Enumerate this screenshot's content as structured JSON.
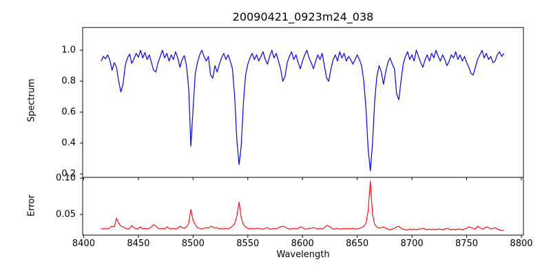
{
  "figure": {
    "background_color": "#ffffff",
    "axis_color": "#000000"
  },
  "chart_data": {
    "type": "line",
    "title": "20090421_0923m24_038",
    "xlabel": "Wavelength",
    "grid": false,
    "legend": "none",
    "xlim": [
      8399.1,
      8801.9
    ],
    "xticks": [
      8400,
      8450,
      8500,
      8550,
      8600,
      8650,
      8700,
      8750,
      8800
    ],
    "xtick_labels": [
      "8400",
      "8450",
      "8500",
      "8550",
      "8600",
      "8650",
      "8700",
      "8750",
      "8800"
    ],
    "x_start": 8416,
    "x_step": 2,
    "panels": [
      {
        "name": "spectrum",
        "ylabel": "Spectrum",
        "ylim": [
          0.178,
          1.147
        ],
        "yticks": [
          0.2,
          0.4,
          0.6,
          0.8,
          1.0
        ],
        "ytick_labels": [
          "0.2",
          "0.4",
          "0.6",
          "0.8",
          "1.0"
        ],
        "series_name": "spectrum-flux",
        "color": "#0000ff"
      },
      {
        "name": "error",
        "ylabel": "Error",
        "ylim": [
          0.0217,
          0.101
        ],
        "yticks": [
          0.05,
          0.1
        ],
        "ytick_labels": [
          "0.05",
          "0.10"
        ],
        "series_name": "error-values",
        "color": "#ff0000"
      }
    ],
    "absorption_line_centers": [
      8498,
      8542,
      8662
    ],
    "spectrum_flux": [
      0.93,
      0.96,
      0.945,
      0.97,
      0.935,
      0.87,
      0.92,
      0.89,
      0.8,
      0.73,
      0.78,
      0.9,
      0.95,
      0.975,
      0.915,
      0.945,
      0.98,
      0.955,
      1.0,
      0.95,
      0.985,
      0.94,
      0.97,
      0.92,
      0.87,
      0.86,
      0.92,
      0.96,
      1.0,
      0.95,
      0.98,
      0.93,
      0.97,
      0.94,
      0.99,
      0.95,
      0.89,
      0.94,
      0.965,
      0.9,
      0.75,
      0.38,
      0.62,
      0.85,
      0.92,
      0.97,
      1.0,
      0.96,
      0.93,
      0.96,
      0.84,
      0.82,
      0.9,
      0.86,
      0.91,
      0.95,
      0.98,
      0.94,
      0.97,
      0.93,
      0.88,
      0.7,
      0.42,
      0.26,
      0.38,
      0.66,
      0.84,
      0.91,
      0.95,
      0.98,
      0.94,
      0.97,
      0.93,
      0.96,
      0.99,
      0.94,
      0.91,
      0.96,
      1.0,
      0.95,
      0.98,
      0.93,
      0.88,
      0.8,
      0.83,
      0.92,
      0.96,
      0.99,
      0.94,
      0.97,
      0.92,
      0.88,
      0.93,
      0.97,
      1.0,
      0.95,
      0.92,
      0.88,
      0.93,
      0.97,
      0.94,
      0.98,
      0.9,
      0.82,
      0.8,
      0.88,
      0.94,
      0.97,
      0.93,
      0.99,
      0.95,
      0.98,
      0.93,
      0.96,
      0.94,
      0.91,
      0.94,
      0.97,
      0.94,
      0.9,
      0.8,
      0.62,
      0.36,
      0.22,
      0.4,
      0.68,
      0.83,
      0.9,
      0.86,
      0.78,
      0.86,
      0.92,
      0.95,
      0.91,
      0.88,
      0.72,
      0.68,
      0.8,
      0.91,
      0.96,
      0.99,
      0.94,
      0.97,
      0.93,
      1.0,
      0.96,
      0.92,
      0.89,
      0.94,
      0.97,
      0.93,
      0.98,
      0.95,
      1.0,
      0.96,
      0.93,
      0.97,
      0.94,
      0.9,
      0.93,
      0.97,
      0.95,
      0.99,
      0.94,
      0.97,
      0.93,
      0.96,
      0.92,
      0.89,
      0.85,
      0.84,
      0.89,
      0.94,
      0.97,
      1.0,
      0.95,
      0.98,
      0.94,
      0.96,
      0.92,
      0.93,
      0.97,
      0.99,
      0.96,
      0.98
    ],
    "error_values": [
      0.031,
      0.03,
      0.031,
      0.03,
      0.032,
      0.034,
      0.033,
      0.045,
      0.038,
      0.034,
      0.033,
      0.031,
      0.03,
      0.031,
      0.035,
      0.032,
      0.03,
      0.031,
      0.033,
      0.03,
      0.031,
      0.03,
      0.031,
      0.033,
      0.036,
      0.034,
      0.031,
      0.03,
      0.031,
      0.03,
      0.033,
      0.031,
      0.03,
      0.031,
      0.03,
      0.031,
      0.034,
      0.032,
      0.031,
      0.033,
      0.038,
      0.057,
      0.042,
      0.036,
      0.032,
      0.031,
      0.03,
      0.031,
      0.032,
      0.031,
      0.034,
      0.033,
      0.031,
      0.032,
      0.03,
      0.031,
      0.03,
      0.031,
      0.03,
      0.032,
      0.034,
      0.037,
      0.048,
      0.067,
      0.046,
      0.036,
      0.033,
      0.031,
      0.03,
      0.031,
      0.03,
      0.031,
      0.031,
      0.03,
      0.03,
      0.031,
      0.032,
      0.03,
      0.03,
      0.031,
      0.03,
      0.032,
      0.033,
      0.034,
      0.033,
      0.031,
      0.03,
      0.03,
      0.031,
      0.03,
      0.031,
      0.033,
      0.032,
      0.03,
      0.03,
      0.031,
      0.031,
      0.032,
      0.031,
      0.03,
      0.031,
      0.03,
      0.032,
      0.035,
      0.034,
      0.032,
      0.03,
      0.03,
      0.031,
      0.03,
      0.03,
      0.031,
      0.03,
      0.031,
      0.03,
      0.031,
      0.03,
      0.03,
      0.031,
      0.032,
      0.034,
      0.038,
      0.055,
      0.096,
      0.05,
      0.036,
      0.033,
      0.031,
      0.032,
      0.033,
      0.031,
      0.03,
      0.029,
      0.03,
      0.031,
      0.033,
      0.034,
      0.031,
      0.03,
      0.029,
      0.029,
      0.03,
      0.029,
      0.03,
      0.029,
      0.03,
      0.03,
      0.031,
      0.03,
      0.029,
      0.03,
      0.029,
      0.03,
      0.029,
      0.03,
      0.03,
      0.029,
      0.03,
      0.031,
      0.03,
      0.029,
      0.03,
      0.029,
      0.03,
      0.03,
      0.029,
      0.03,
      0.031,
      0.033,
      0.032,
      0.031,
      0.03,
      0.034,
      0.032,
      0.03,
      0.031,
      0.033,
      0.032,
      0.03,
      0.031,
      0.032,
      0.03,
      0.029,
      0.028,
      0.028
    ]
  }
}
